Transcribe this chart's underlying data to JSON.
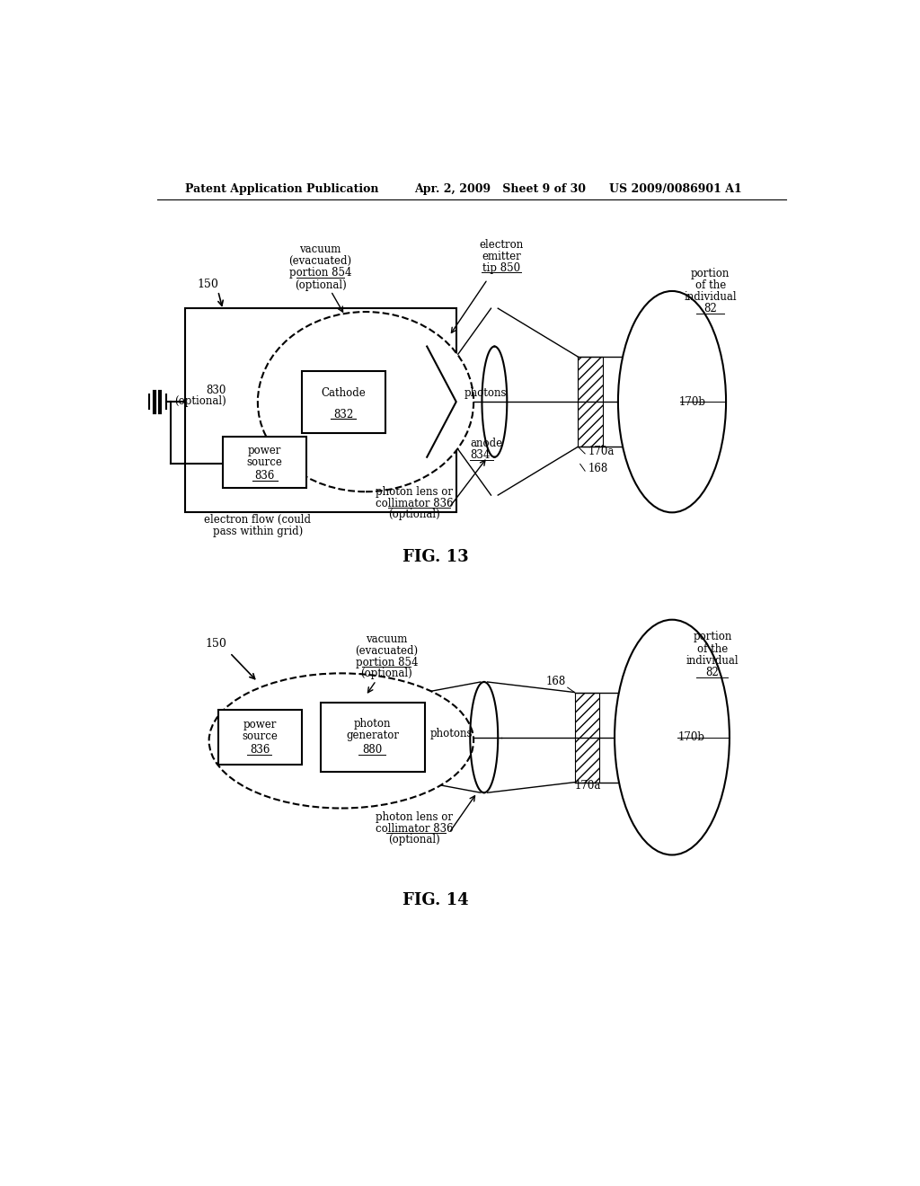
{
  "background_color": "#ffffff",
  "header_left": "Patent Application Publication",
  "header_mid": "Apr. 2, 2009   Sheet 9 of 30",
  "header_right": "US 2009/0086901 A1"
}
